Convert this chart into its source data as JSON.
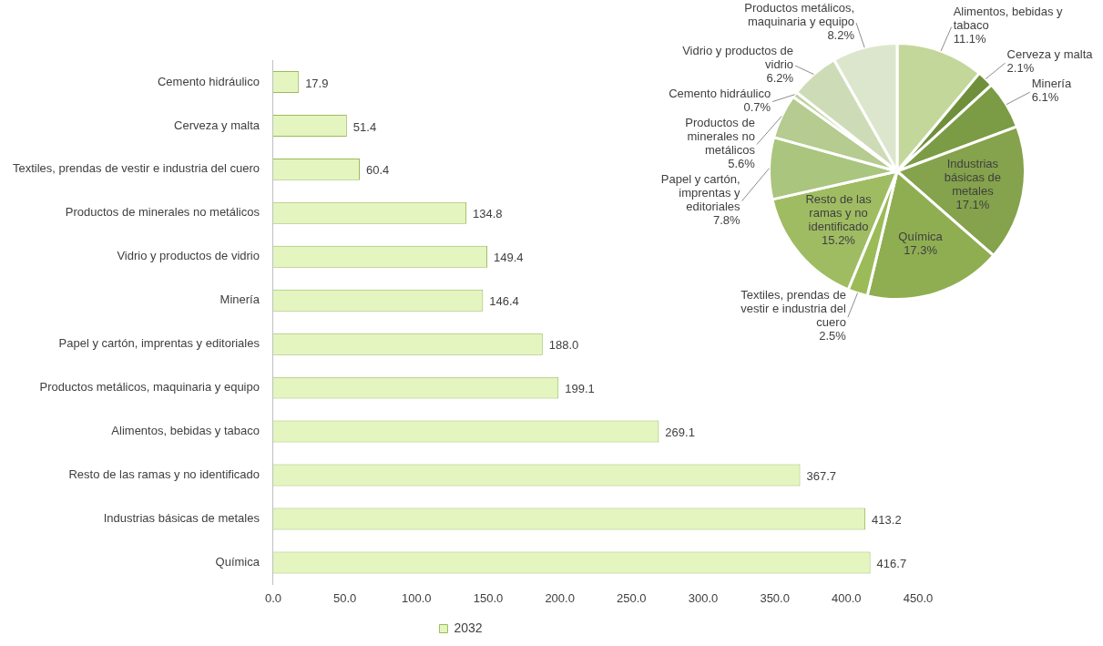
{
  "chart_data": [
    {
      "type": "bar",
      "orientation": "horizontal",
      "categories": [
        "Cemento hidráulico",
        "Cerveza y malta",
        "Textiles, prendas de vestir e industria del cuero",
        "Productos de minerales no metálicos",
        "Vidrio y productos de vidrio",
        "Minería",
        "Papel y cartón, imprentas y editoriales",
        "Productos metálicos, maquinaria y equipo",
        "Alimentos, bebidas y tabaco",
        "Resto de las ramas y no identificado",
        "Industrias básicas de metales",
        "Química"
      ],
      "series": [
        {
          "name": "2032",
          "color": "#e4f5c0",
          "values": [
            17.9,
            51.4,
            60.4,
            134.8,
            149.4,
            146.4,
            188.0,
            199.1,
            269.1,
            367.7,
            413.2,
            416.7
          ],
          "value_labels": [
            "17.9",
            "51.4",
            "60.4",
            "134.8",
            "149.4",
            "146.4",
            "188.0",
            "199.1",
            "269.1",
            "367.7",
            "413.2",
            "416.7"
          ]
        }
      ],
      "xlim": [
        0,
        450
      ],
      "xticks": [
        {
          "value": 0,
          "label": "0.0"
        },
        {
          "value": 50,
          "label": "50.0"
        },
        {
          "value": 100,
          "label": "100.0"
        },
        {
          "value": 150,
          "label": "150.0"
        },
        {
          "value": 200,
          "label": "200.0"
        },
        {
          "value": 250,
          "label": "250.0"
        },
        {
          "value": 300,
          "label": "300.0"
        },
        {
          "value": 350,
          "label": "350.0"
        },
        {
          "value": 400,
          "label": "400.0"
        },
        {
          "value": 450,
          "label": "450.0"
        }
      ],
      "legend": "bottom"
    },
    {
      "type": "pie",
      "categories": [
        "Alimentos, bebidas y tabaco",
        "Cerveza y malta",
        "Minería",
        "Industrias básicas de metales",
        "Química",
        "Textiles, prendas de vestir e industria del cuero",
        "Resto de las ramas y no identificado",
        "Papel y cartón, imprentas y editoriales",
        "Productos de minerales no metálicos",
        "Cemento hidráulico",
        "Vidrio y productos de vidrio",
        "Productos metálicos, maquinaria y equipo"
      ],
      "values": [
        11.1,
        2.1,
        6.1,
        17.1,
        17.3,
        2.5,
        15.2,
        7.8,
        5.6,
        0.7,
        6.2,
        8.2
      ],
      "colors": [
        "#c4d79b",
        "#6f8f3a",
        "#7b9c45",
        "#85a24c",
        "#8fae52",
        "#9bbb59",
        "#9fbc62",
        "#aac57e",
        "#b5cb8f",
        "#bfd29e",
        "#cedbb7",
        "#dce6cc"
      ],
      "value_labels": [
        "11.1%",
        "2.1%",
        "6.1%",
        "17.1%",
        "17.3%",
        "2.5%",
        "15.2%",
        "7.8%",
        "5.6%",
        "0.7%",
        "6.2%",
        "8.2%"
      ]
    }
  ]
}
